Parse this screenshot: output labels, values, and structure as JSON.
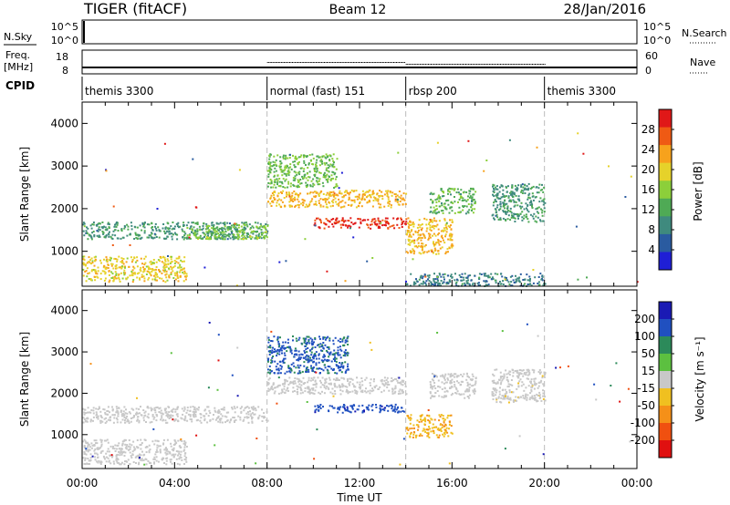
{
  "header": {
    "radar": "TIGER (fitACF)",
    "beam": "Beam 12",
    "date": "28/Jan/2016"
  },
  "sky_panel": {
    "left_label": "N.Sky",
    "right_label": "N.Search",
    "left_ticks": [
      "10^5",
      "10^0"
    ],
    "right_ticks": [
      "10^5",
      "10^0"
    ]
  },
  "freq_panel": {
    "left_label_1": "Freq.",
    "left_label_2": "[MHz]",
    "right_label": "Nave",
    "left_ticks": [
      "18",
      "8"
    ],
    "right_ticks": [
      "60",
      "0"
    ]
  },
  "cpid": {
    "label": "CPID",
    "modes": [
      {
        "name": "themis 3300",
        "start_hour": 0
      },
      {
        "name": "normal (fast) 151",
        "start_hour": 8
      },
      {
        "name": "rbsp 200",
        "start_hour": 14
      },
      {
        "name": "themis 3300",
        "start_hour": 20
      }
    ]
  },
  "x_axis": {
    "label": "Time UT",
    "ticks": [
      "00:00",
      "04:00",
      "08:00",
      "12:00",
      "16:00",
      "20:00",
      "00:00"
    ],
    "hours": [
      0,
      4,
      8,
      12,
      16,
      20,
      24
    ]
  },
  "power_panel": {
    "ylabel": "Slant Range [km]",
    "yticks": [
      "1000",
      "2000",
      "3000",
      "4000"
    ],
    "colorbar_label": "Power [dB]",
    "colorbar_ticks": [
      "4",
      "8",
      "12",
      "16",
      "20",
      "24",
      "28"
    ],
    "colors": [
      "#1f1fd6",
      "#2a5ba0",
      "#3f8a7e",
      "#4faa55",
      "#8ccf3a",
      "#e6d22a",
      "#f7a21c",
      "#ef5a14",
      "#e01818"
    ]
  },
  "velocity_panel": {
    "ylabel": "Slant Range [km]",
    "yticks": [
      "1000",
      "2000",
      "3000",
      "4000"
    ],
    "colorbar_label": "Velocity [m s⁻¹]",
    "colorbar_ticks": [
      "200",
      "100",
      "50",
      "15",
      "-15",
      "-50",
      "-100",
      "-200"
    ],
    "colors": [
      "#1a1ab4",
      "#2050c0",
      "#2c8a5a",
      "#5cc040",
      "#c8c8c8",
      "#f0c020",
      "#f59018",
      "#f05010",
      "#e01010"
    ]
  },
  "chart_data": {
    "type": "heatmap",
    "x_unit": "hours UT",
    "xlim": [
      0,
      24
    ],
    "ylim_km": [
      180,
      4500
    ],
    "power_range_db": [
      0,
      32
    ],
    "velocity_range_ms": [
      -250,
      250
    ],
    "power_clusters": [
      {
        "t0": 0.0,
        "t1": 4.5,
        "r0": 300,
        "r1": 900,
        "value": 20
      },
      {
        "t0": 0.0,
        "t1": 8.0,
        "r0": 1300,
        "r1": 1700,
        "value": 10
      },
      {
        "t0": 4.5,
        "t1": 8.0,
        "r0": 1300,
        "r1": 1650,
        "value": 15
      },
      {
        "t0": 8.0,
        "t1": 14.0,
        "r0": 2050,
        "r1": 2450,
        "value": 22
      },
      {
        "t0": 10.0,
        "t1": 14.0,
        "r0": 1550,
        "r1": 1800,
        "value": 30
      },
      {
        "t0": 8.0,
        "t1": 11.0,
        "r0": 2500,
        "r1": 3300,
        "value": 14
      },
      {
        "t0": 14.0,
        "t1": 16.0,
        "r0": 950,
        "r1": 1800,
        "value": 22
      },
      {
        "t0": 15.0,
        "t1": 17.0,
        "r0": 1900,
        "r1": 2500,
        "value": 13
      },
      {
        "t0": 17.7,
        "t1": 20.0,
        "r0": 1700,
        "r1": 2600,
        "value": 10
      },
      {
        "t0": 14.0,
        "t1": 20.0,
        "r0": 200,
        "r1": 500,
        "value": 8
      }
    ],
    "velocity_clusters": [
      {
        "t0": 0.0,
        "t1": 4.5,
        "r0": 300,
        "r1": 900,
        "value": 0
      },
      {
        "t0": 0.0,
        "t1": 8.0,
        "r0": 1300,
        "r1": 1700,
        "value": 5
      },
      {
        "t0": 8.0,
        "t1": 14.0,
        "r0": 2000,
        "r1": 2400,
        "value": 0
      },
      {
        "t0": 10.0,
        "t1": 14.0,
        "r0": 1550,
        "r1": 1750,
        "value": 180
      },
      {
        "t0": 8.0,
        "t1": 11.5,
        "r0": 2500,
        "r1": 3400,
        "value": 150
      },
      {
        "t0": 14.0,
        "t1": 16.0,
        "r0": 950,
        "r1": 1500,
        "value": -80
      },
      {
        "t0": 15.0,
        "t1": 17.0,
        "r0": 1900,
        "r1": 2500,
        "value": 5
      },
      {
        "t0": 17.7,
        "t1": 20.0,
        "r0": 1800,
        "r1": 2600,
        "value": -10
      }
    ]
  }
}
